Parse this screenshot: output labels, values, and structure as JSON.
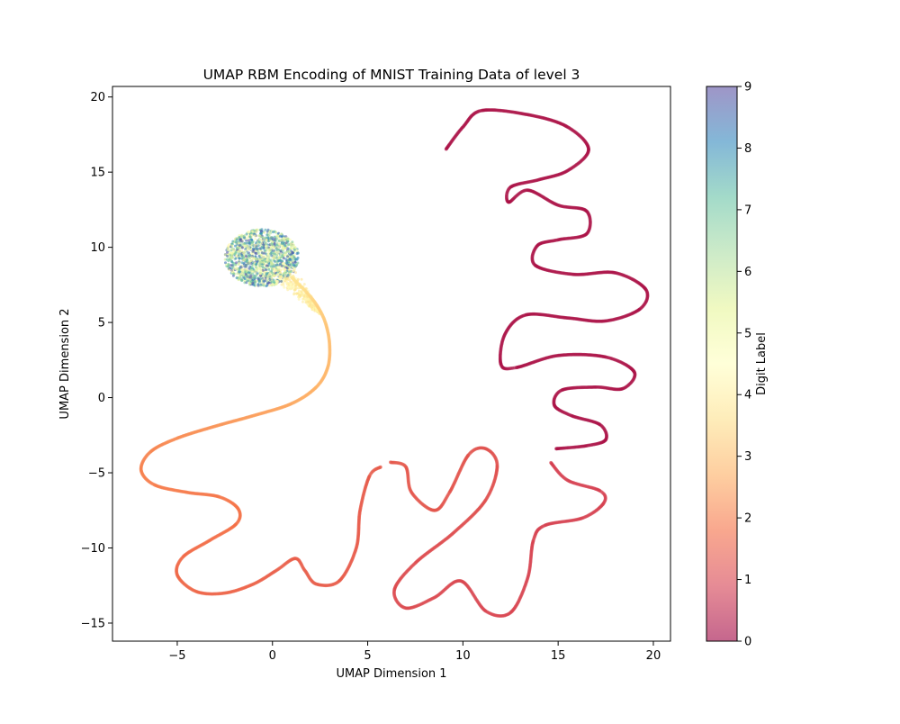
{
  "chart_data": {
    "type": "scatter",
    "title": "UMAP RBM Encoding of MNIST Training Data of level 3",
    "xlabel": "UMAP Dimension 1",
    "ylabel": "UMAP Dimension 2",
    "xlim": [
      -8.4,
      20.9
    ],
    "ylim": [
      -16.2,
      20.7
    ],
    "xticks": [
      -5,
      0,
      5,
      10,
      15,
      20
    ],
    "xtick_labels": [
      "−5",
      "0",
      "5",
      "10",
      "15",
      "20"
    ],
    "yticks": [
      -15,
      -10,
      -5,
      0,
      5,
      10,
      15,
      20
    ],
    "ytick_labels": [
      "−15",
      "−10",
      "−5",
      "0",
      "5",
      "10",
      "15",
      "20"
    ],
    "grid": false,
    "colormap": "Spectral",
    "colormap_stops": [
      "#9e0142",
      "#d53e4f",
      "#f46d43",
      "#fdae61",
      "#fee08b",
      "#ffffbf",
      "#e6f598",
      "#abdda4",
      "#66c2a5",
      "#3288bd",
      "#5e4fa2"
    ],
    "point_alpha": 0.6,
    "colorbar": {
      "label": "Digit Label",
      "range": [
        0,
        9
      ],
      "ticks": [
        0,
        1,
        2,
        3,
        4,
        5,
        6,
        7,
        8,
        9
      ],
      "tick_labels": [
        "0",
        "1",
        "2",
        "3",
        "4",
        "5",
        "6",
        "7",
        "8",
        "9"
      ]
    },
    "cluster": {
      "name": "digits 4-9 blob",
      "center": [
        -0.55,
        9.3
      ],
      "radius_x": 1.95,
      "radius_y": 1.9,
      "label_range": [
        4,
        9
      ]
    },
    "series": [
      {
        "name": "curve A (labels ~4 to ~1.4)",
        "points": [
          [
            1.0,
            8.0,
            3.8
          ],
          [
            1.8,
            7.0,
            3.5
          ],
          [
            2.4,
            6.0,
            3.3
          ],
          [
            2.8,
            4.9,
            3.1
          ],
          [
            3.0,
            3.5,
            2.95
          ],
          [
            2.9,
            2.0,
            2.85
          ],
          [
            2.3,
            0.7,
            2.75
          ],
          [
            1.0,
            -0.4,
            2.6
          ],
          [
            -1.0,
            -1.2,
            2.45
          ],
          [
            -3.0,
            -1.9,
            2.3
          ],
          [
            -5.0,
            -2.7,
            2.2
          ],
          [
            -6.4,
            -3.6,
            2.1
          ],
          [
            -6.9,
            -4.8,
            2.05
          ],
          [
            -6.2,
            -5.8,
            2.0
          ],
          [
            -4.5,
            -6.3,
            1.95
          ],
          [
            -2.8,
            -6.6,
            1.9
          ],
          [
            -1.8,
            -7.4,
            1.85
          ],
          [
            -1.9,
            -8.4,
            1.8
          ],
          [
            -3.3,
            -9.5,
            1.75
          ],
          [
            -4.7,
            -10.6,
            1.7
          ],
          [
            -5.0,
            -11.8,
            1.65
          ],
          [
            -4.0,
            -12.9,
            1.62
          ],
          [
            -2.5,
            -13.0,
            1.6
          ],
          [
            -1.0,
            -12.4,
            1.55
          ],
          [
            0.2,
            -11.5,
            1.5
          ],
          [
            1.2,
            -10.7,
            1.48
          ],
          [
            1.7,
            -11.5,
            1.46
          ],
          [
            2.3,
            -12.4,
            1.45
          ],
          [
            3.5,
            -12.2,
            1.43
          ],
          [
            4.4,
            -10.0,
            1.42
          ],
          [
            4.6,
            -7.5,
            1.41
          ],
          [
            5.1,
            -5.2,
            1.4
          ],
          [
            5.7,
            -4.6,
            1.4
          ]
        ]
      },
      {
        "name": "curve B (labels ~1.4 to ~0.9)",
        "points": [
          [
            6.2,
            -4.3,
            1.38
          ],
          [
            7.0,
            -4.6,
            1.35
          ],
          [
            7.3,
            -6.3,
            1.33
          ],
          [
            8.5,
            -7.5,
            1.3
          ],
          [
            9.3,
            -6.3,
            1.28
          ],
          [
            10.3,
            -3.8,
            1.25
          ],
          [
            11.2,
            -3.4,
            1.22
          ],
          [
            11.8,
            -4.5,
            1.2
          ],
          [
            11.2,
            -6.8,
            1.18
          ],
          [
            9.5,
            -9.0,
            1.15
          ],
          [
            7.5,
            -11.0,
            1.12
          ],
          [
            6.4,
            -12.8,
            1.1
          ],
          [
            7.0,
            -14.0,
            1.08
          ],
          [
            8.5,
            -13.3,
            1.05
          ],
          [
            9.9,
            -12.2,
            1.02
          ],
          [
            11.2,
            -14.2,
            1.0
          ],
          [
            12.5,
            -14.3,
            0.98
          ],
          [
            13.4,
            -12.0,
            0.96
          ],
          [
            13.7,
            -9.5,
            0.95
          ],
          [
            14.3,
            -8.5,
            0.94
          ],
          [
            16.3,
            -8.0,
            0.92
          ],
          [
            17.4,
            -7.0,
            0.91
          ],
          [
            17.2,
            -6.2,
            0.9
          ],
          [
            15.5,
            -5.5,
            0.9
          ],
          [
            14.6,
            -4.3,
            0.89
          ]
        ]
      },
      {
        "name": "curve C (label ~0)",
        "points": [
          [
            14.9,
            -3.4,
            0.2
          ],
          [
            16.5,
            -3.2,
            0.2
          ],
          [
            17.5,
            -2.8,
            0.2
          ],
          [
            17.2,
            -1.8,
            0.2
          ],
          [
            15.7,
            -1.2,
            0.2
          ],
          [
            14.8,
            -0.5,
            0.2
          ],
          [
            15.2,
            0.5,
            0.2
          ],
          [
            17.0,
            0.7,
            0.2
          ],
          [
            18.4,
            0.6,
            0.2
          ],
          [
            19.0,
            1.7,
            0.2
          ],
          [
            17.5,
            2.7,
            0.2
          ],
          [
            15.0,
            2.8,
            0.2
          ],
          [
            12.8,
            2.0,
            0.2
          ],
          [
            12.0,
            2.2,
            0.2
          ],
          [
            12.2,
            4.2,
            0.2
          ],
          [
            13.3,
            5.5,
            0.2
          ],
          [
            15.5,
            5.3,
            0.2
          ],
          [
            17.5,
            5.1,
            0.2
          ],
          [
            19.3,
            5.9,
            0.2
          ],
          [
            19.6,
            7.2,
            0.2
          ],
          [
            18.0,
            8.3,
            0.2
          ],
          [
            15.8,
            8.2,
            0.2
          ],
          [
            13.8,
            8.8,
            0.2
          ],
          [
            13.9,
            10.1,
            0.2
          ],
          [
            15.0,
            10.5,
            0.2
          ],
          [
            16.5,
            10.9,
            0.2
          ],
          [
            16.5,
            12.4,
            0.2
          ],
          [
            15.0,
            12.8,
            0.2
          ],
          [
            13.4,
            13.8,
            0.2
          ],
          [
            12.4,
            13.0,
            0.2
          ],
          [
            12.5,
            14.0,
            0.2
          ],
          [
            14.0,
            14.5,
            0.2
          ],
          [
            15.5,
            15.1,
            0.2
          ],
          [
            16.6,
            16.5,
            0.2
          ],
          [
            15.5,
            18.0,
            0.2
          ],
          [
            13.5,
            18.8,
            0.2
          ],
          [
            11.0,
            19.1,
            0.2
          ],
          [
            10.0,
            18.0,
            0.2
          ],
          [
            9.1,
            16.5,
            0.2
          ]
        ]
      }
    ]
  }
}
